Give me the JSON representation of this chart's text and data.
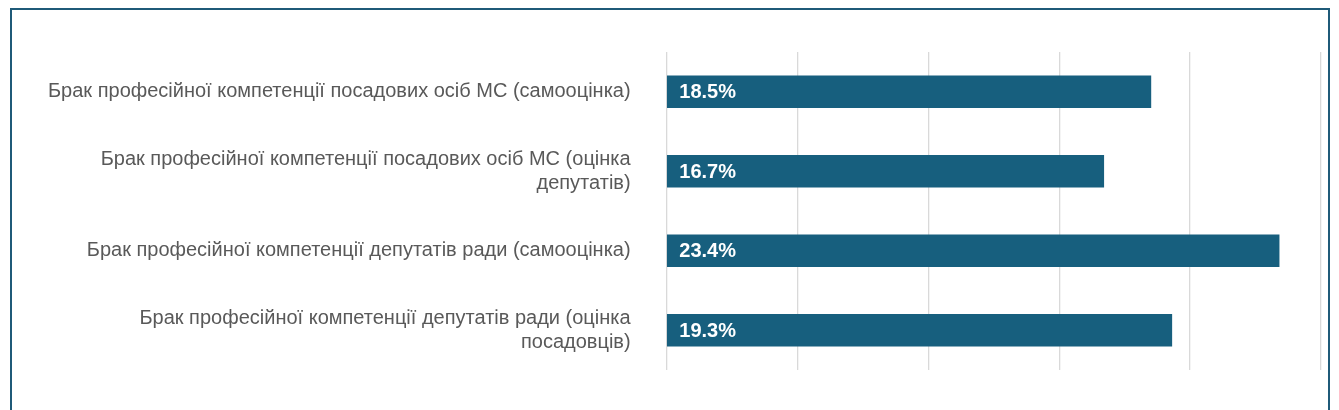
{
  "chart_data": {
    "type": "bar",
    "orientation": "horizontal",
    "categories": [
      "Брак професійної компетенції посадових осіб МС (самооцінка)",
      "Брак професійної компетенції посадових осіб МС (оцінка депутатів)",
      "Брак професійної компетенції депутатів ради (самооцінка)",
      "Брак професійної компетенції депутатів ради (оцінка посадовців)"
    ],
    "values": [
      18.5,
      16.7,
      23.4,
      19.3
    ],
    "value_labels": [
      "18.5%",
      "16.7%",
      "23.4%",
      "19.3%"
    ],
    "color": "#175f7e",
    "xlim": [
      0,
      25
    ],
    "xticks": [
      {
        "value": 0,
        "label": null
      },
      {
        "value": 5,
        "label": null
      },
      {
        "value": 10,
        "label": null
      },
      {
        "value": 15,
        "label": null
      },
      {
        "value": 20,
        "label": null
      },
      {
        "value": 25,
        "label": null
      }
    ],
    "grid": "x",
    "tick_labels": "y",
    "legend": false
  }
}
